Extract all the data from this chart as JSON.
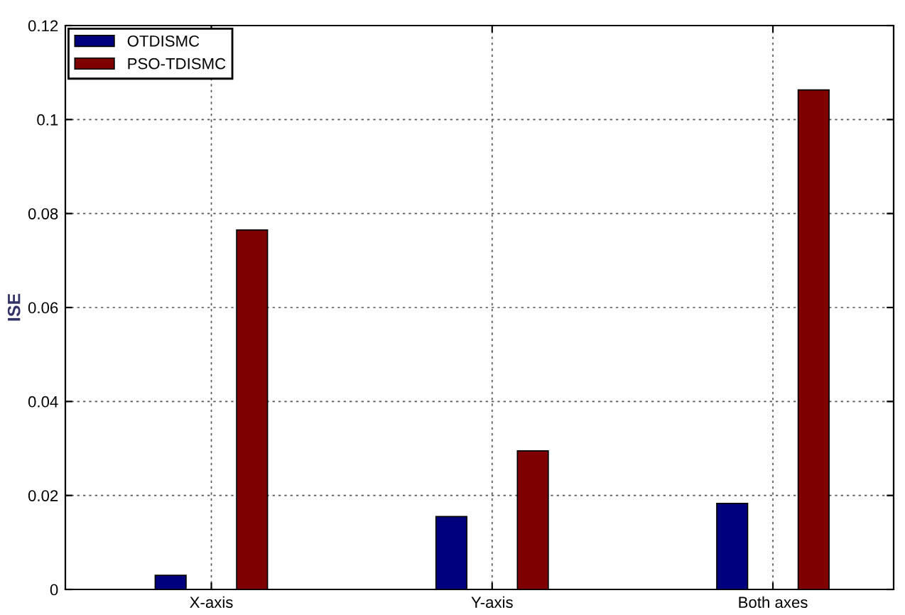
{
  "chart_data": {
    "type": "bar",
    "ylabel": "ISE",
    "categories": [
      "X-axis",
      "Y-axis",
      "Both axes"
    ],
    "series": [
      {
        "name": "OTDISMC",
        "color": "#00007f",
        "values": [
          0.003,
          0.0155,
          0.0183
        ]
      },
      {
        "name": "PSO-TDISMC",
        "color": "#7f0000",
        "values": [
          0.0765,
          0.0295,
          0.1063
        ]
      }
    ],
    "ylim": [
      0,
      0.12
    ],
    "yticks": [
      0,
      0.02,
      0.04,
      0.06,
      0.08,
      0.1,
      0.12
    ],
    "grid": true,
    "legend": "top left"
  }
}
